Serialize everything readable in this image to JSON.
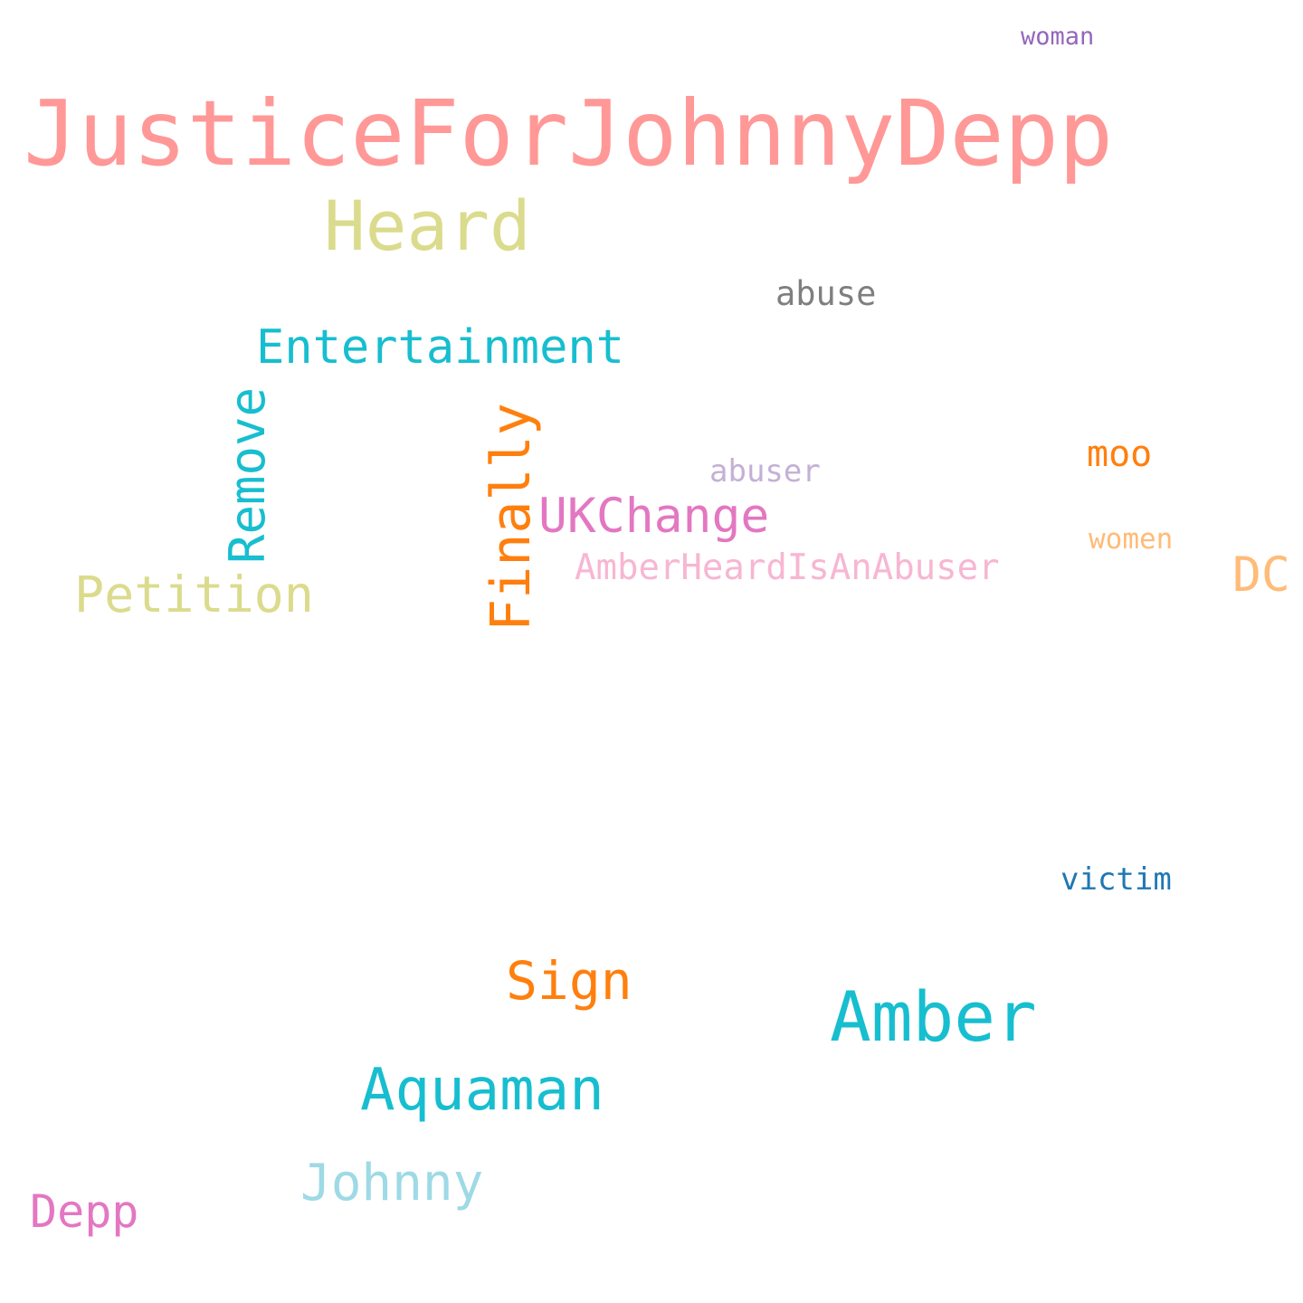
{
  "words": [
    {
      "text": "JusticeForJohnnyDepp",
      "color": "#ff9896"
    },
    {
      "text": "Heard",
      "color": "#dbdb8d"
    },
    {
      "text": "abuse",
      "color": "#7f7f7f"
    },
    {
      "text": "Entertainment",
      "color": "#17becf"
    },
    {
      "text": "Remove",
      "color": "#17becf"
    },
    {
      "text": "Finally",
      "color": "#ff7f0e"
    },
    {
      "text": "abuser",
      "color": "#c5b0d5"
    },
    {
      "text": "moo",
      "color": "#ff7f0e"
    },
    {
      "text": "UKChange",
      "color": "#e377c2"
    },
    {
      "text": "women",
      "color": "#ffbb78"
    },
    {
      "text": "AmberHeardIsAnAbuser",
      "color": "#f7b6d2"
    },
    {
      "text": "DC",
      "color": "#ffbb78"
    },
    {
      "text": "Petition",
      "color": "#dbdb8d"
    },
    {
      "text": "woman",
      "color": "#9467bd"
    },
    {
      "text": "victim",
      "color": "#1f77b4"
    },
    {
      "text": "Sign",
      "color": "#ff7f0e"
    },
    {
      "text": "Amber",
      "color": "#17becf"
    },
    {
      "text": "Aquaman",
      "color": "#17becf"
    },
    {
      "text": "Johnny",
      "color": "#9edae5"
    },
    {
      "text": "Depp",
      "color": "#e377c2"
    }
  ]
}
